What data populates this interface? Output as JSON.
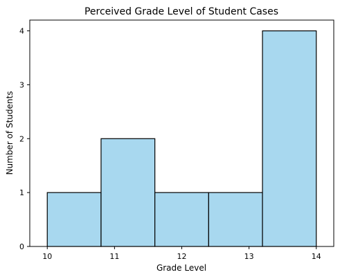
{
  "chart_data": {
    "type": "bar",
    "title": "Perceived Grade Level of Student Cases",
    "xlabel": "Grade Level",
    "ylabel": "Number of Students",
    "bins": [
      {
        "start": 10.0,
        "end": 10.8,
        "count": 1
      },
      {
        "start": 10.8,
        "end": 11.6,
        "count": 2
      },
      {
        "start": 11.6,
        "end": 12.4,
        "count": 1
      },
      {
        "start": 12.4,
        "end": 13.2,
        "count": 1
      },
      {
        "start": 13.2,
        "end": 14.0,
        "count": 4
      }
    ],
    "xlim": [
      9.74,
      14.26
    ],
    "ylim": [
      0,
      4.2
    ],
    "xticks": [
      "10",
      "11",
      "12",
      "13",
      "14"
    ],
    "yticks": [
      "0",
      "1",
      "2",
      "3",
      "4"
    ],
    "bar_color": "#a8d8ef",
    "edge_color": "#000000",
    "grid": false,
    "legend": false
  }
}
